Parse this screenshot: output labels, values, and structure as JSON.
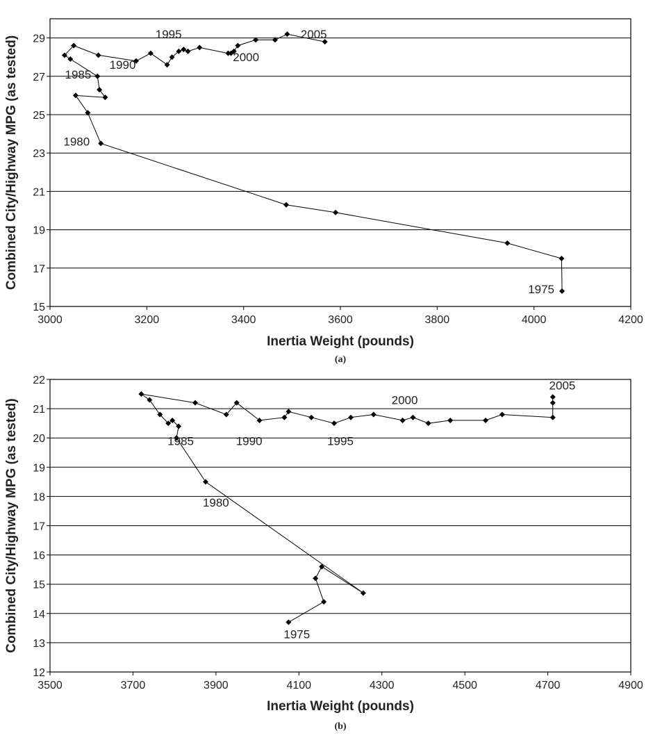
{
  "chart_data": [
    {
      "type": "line",
      "panel_label": "(a)",
      "xlabel": "Inertia Weight (pounds)",
      "ylabel": "Combined City/Highway MPG (as tested)",
      "xlim": [
        3000,
        4200
      ],
      "ylim": [
        15,
        30
      ],
      "xticks": [
        3000,
        3200,
        3400,
        3600,
        3800,
        4000,
        4200
      ],
      "yticks": [
        15,
        17,
        19,
        21,
        23,
        25,
        27,
        29
      ],
      "grid": "horizontal",
      "legend": "none",
      "color": "#000000",
      "series": [
        {
          "x": [
            4058,
            4057,
            3945,
            3590,
            3488,
            3105,
            3078,
            3053,
            3114,
            3102,
            3098,
            3042,
            3030,
            3049,
            3100,
            3178,
            3208,
            3242,
            3252,
            3266,
            3276,
            3285,
            3309,
            3368,
            3374,
            3380,
            3388,
            3425,
            3465,
            3490,
            3568
          ],
          "y": [
            15.8,
            17.5,
            18.3,
            19.9,
            20.3,
            23.5,
            25.1,
            26.0,
            25.9,
            26.3,
            27.0,
            27.9,
            28.1,
            28.6,
            28.1,
            27.8,
            28.2,
            27.6,
            28.0,
            28.3,
            28.4,
            28.3,
            28.5,
            28.2,
            28.2,
            28.3,
            28.6,
            28.9,
            28.9,
            29.2,
            28.8
          ]
        }
      ],
      "annotations": [
        {
          "text": "1975",
          "x": 4015,
          "y": 15.9
        },
        {
          "text": "1980",
          "x": 3055,
          "y": 23.6
        },
        {
          "text": "1985",
          "x": 3058,
          "y": 27.1
        },
        {
          "text": "1990",
          "x": 3150,
          "y": 27.6
        },
        {
          "text": "1995",
          "x": 3245,
          "y": 29.2
        },
        {
          "text": "2000",
          "x": 3405,
          "y": 28.0
        },
        {
          "text": "2005",
          "x": 3545,
          "y": 29.2
        }
      ]
    },
    {
      "type": "line",
      "panel_label": "(b)",
      "xlabel": "Inertia Weight (pounds)",
      "ylabel": "Combined City/Highway MPG (as tested)",
      "xlim": [
        3500,
        4900
      ],
      "ylim": [
        12,
        22
      ],
      "xticks": [
        3500,
        3700,
        3900,
        4100,
        4300,
        4500,
        4700,
        4900
      ],
      "yticks": [
        12,
        13,
        14,
        15,
        16,
        17,
        18,
        19,
        20,
        21,
        22
      ],
      "grid": "horizontal",
      "legend": "none",
      "color": "#000000",
      "series": [
        {
          "x": [
            4075,
            4160,
            4140,
            4155,
            4255,
            3875,
            3805,
            3810,
            3795,
            3785,
            3765,
            3740,
            3720,
            3850,
            3925,
            3950,
            4005,
            4065,
            4075,
            4130,
            4185,
            4225,
            4280,
            4350,
            4375,
            4412,
            4465,
            4550,
            4590,
            4712,
            4712,
            4712
          ],
          "y": [
            13.7,
            14.4,
            15.2,
            15.6,
            14.7,
            18.5,
            20.0,
            20.4,
            20.6,
            20.5,
            20.8,
            21.3,
            21.5,
            21.2,
            20.8,
            21.2,
            20.6,
            20.7,
            20.9,
            20.7,
            20.5,
            20.7,
            20.8,
            20.6,
            20.7,
            20.5,
            20.6,
            20.6,
            20.8,
            20.7,
            21.2,
            21.4
          ]
        }
      ],
      "annotations": [
        {
          "text": "1975",
          "x": 4095,
          "y": 13.3
        },
        {
          "text": "1980",
          "x": 3900,
          "y": 17.8
        },
        {
          "text": "1985",
          "x": 3815,
          "y": 19.9
        },
        {
          "text": "1990",
          "x": 3980,
          "y": 19.9
        },
        {
          "text": "1995",
          "x": 4200,
          "y": 19.9
        },
        {
          "text": "2000",
          "x": 4355,
          "y": 21.3
        },
        {
          "text": "2005",
          "x": 4735,
          "y": 21.8
        }
      ]
    }
  ]
}
